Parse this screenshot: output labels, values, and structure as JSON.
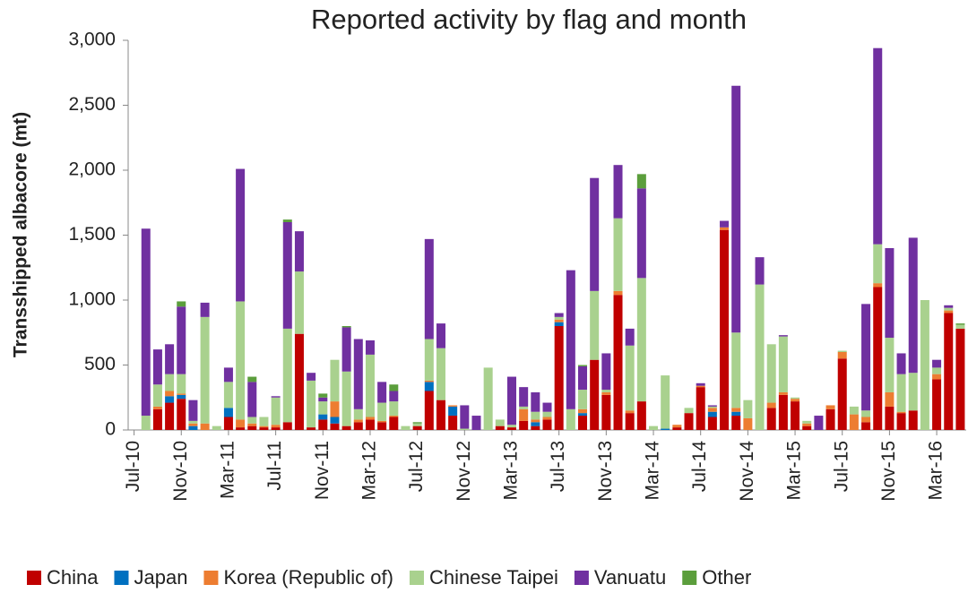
{
  "chart_data": {
    "type": "stacked_bar",
    "title": "Reported activity by flag and month",
    "y_label": "Transshipped albacore (mt)",
    "categories": [
      "Jul-10",
      null,
      null,
      null,
      "Nov-10",
      null,
      null,
      null,
      "Mar-11",
      null,
      null,
      null,
      "Jul-11",
      null,
      null,
      null,
      "Nov-11",
      null,
      null,
      null,
      "Mar-12",
      null,
      null,
      null,
      "Jul-12",
      null,
      null,
      null,
      "Nov-12",
      null,
      null,
      null,
      "Mar-13",
      null,
      null,
      null,
      "Jul-13",
      null,
      null,
      null,
      "Nov-13",
      null,
      null,
      null,
      "Mar-14",
      null,
      null,
      null,
      "Jul-14",
      null,
      null,
      null,
      "Nov-14",
      null,
      null,
      null,
      "Mar-15",
      null,
      null,
      null,
      "Jul-15",
      null,
      null,
      null,
      "Nov-15",
      null,
      null,
      null,
      "Mar-16",
      null,
      null
    ],
    "series": [
      {
        "name": "China",
        "color": "#c00000",
        "values": [
          0,
          0,
          160,
          210,
          240,
          0,
          0,
          0,
          100,
          20,
          30,
          20,
          20,
          60,
          740,
          20,
          80,
          50,
          30,
          60,
          80,
          60,
          100,
          0,
          30,
          300,
          230,
          110,
          0,
          0,
          0,
          30,
          20,
          70,
          30,
          80,
          800,
          0,
          110,
          540,
          270,
          1040,
          130,
          220,
          0,
          0,
          20,
          130,
          330,
          100,
          1540,
          110,
          0,
          0,
          170,
          270,
          220,
          30,
          0,
          160,
          550,
          0,
          60,
          1100,
          180,
          130,
          150,
          0,
          390,
          900,
          780
        ]
      },
      {
        "name": "Japan",
        "color": "#0070c0",
        "values": [
          0,
          0,
          0,
          50,
          30,
          30,
          0,
          0,
          70,
          0,
          0,
          0,
          0,
          0,
          0,
          0,
          40,
          50,
          0,
          0,
          0,
          0,
          0,
          0,
          0,
          70,
          0,
          70,
          0,
          0,
          0,
          0,
          0,
          0,
          30,
          0,
          30,
          0,
          20,
          0,
          0,
          0,
          0,
          0,
          0,
          10,
          0,
          0,
          0,
          40,
          0,
          30,
          0,
          0,
          0,
          0,
          0,
          0,
          0,
          0,
          0,
          0,
          0,
          0,
          0,
          0,
          0,
          0,
          0,
          0,
          0
        ]
      },
      {
        "name": "Korea (Republic of)",
        "color": "#ed7d31",
        "values": [
          0,
          0,
          20,
          40,
          10,
          20,
          50,
          0,
          0,
          60,
          20,
          10,
          20,
          0,
          0,
          0,
          0,
          120,
          0,
          20,
          20,
          10,
          10,
          0,
          0,
          10,
          0,
          10,
          0,
          0,
          0,
          0,
          0,
          90,
          20,
          20,
          20,
          0,
          30,
          0,
          20,
          30,
          20,
          0,
          0,
          0,
          20,
          0,
          10,
          30,
          20,
          30,
          90,
          0,
          40,
          20,
          20,
          20,
          0,
          30,
          50,
          120,
          40,
          30,
          110,
          10,
          0,
          0,
          40,
          20,
          0
        ]
      },
      {
        "name": "Chinese Taipei",
        "color": "#a9d18e",
        "values": [
          0,
          110,
          170,
          130,
          150,
          20,
          820,
          30,
          200,
          910,
          50,
          70,
          210,
          720,
          480,
          360,
          100,
          320,
          420,
          80,
          480,
          140,
          110,
          30,
          20,
          320,
          400,
          0,
          10,
          0,
          480,
          50,
          20,
          20,
          60,
          40,
          20,
          160,
          150,
          530,
          20,
          560,
          500,
          950,
          30,
          410,
          0,
          40,
          0,
          10,
          0,
          580,
          140,
          1120,
          450,
          430,
          10,
          20,
          0,
          0,
          10,
          60,
          50,
          300,
          420,
          290,
          290,
          1000,
          50,
          20,
          30
        ]
      },
      {
        "name": "Vanuatu",
        "color": "#7030a0",
        "values": [
          0,
          1440,
          270,
          230,
          520,
          160,
          110,
          0,
          110,
          1020,
          270,
          0,
          10,
          820,
          310,
          60,
          30,
          0,
          340,
          540,
          110,
          160,
          80,
          0,
          0,
          770,
          190,
          0,
          180,
          110,
          0,
          0,
          370,
          150,
          150,
          70,
          30,
          1070,
          180,
          870,
          280,
          410,
          130,
          690,
          0,
          0,
          0,
          0,
          20,
          10,
          50,
          1900,
          0,
          210,
          0,
          10,
          0,
          0,
          110,
          0,
          0,
          0,
          820,
          1510,
          690,
          160,
          1040,
          0,
          60,
          20,
          0
        ]
      },
      {
        "name": "Other",
        "color": "#5b9e3c",
        "values": [
          0,
          0,
          0,
          0,
          40,
          0,
          0,
          0,
          0,
          0,
          40,
          0,
          0,
          20,
          0,
          0,
          30,
          0,
          10,
          0,
          0,
          0,
          50,
          0,
          10,
          0,
          0,
          0,
          0,
          0,
          0,
          0,
          0,
          0,
          0,
          0,
          0,
          0,
          10,
          0,
          0,
          0,
          0,
          110,
          0,
          0,
          0,
          0,
          0,
          0,
          0,
          0,
          0,
          0,
          0,
          0,
          0,
          0,
          0,
          0,
          0,
          0,
          0,
          0,
          0,
          0,
          0,
          0,
          0,
          0,
          10
        ]
      }
    ],
    "ylim": [
      0,
      3000
    ],
    "yticks": [
      0,
      500,
      {
        "value": 1000,
        "label": "1,000"
      },
      {
        "value": 1500,
        "label": "1,500"
      },
      {
        "value": 2000,
        "label": "2,000"
      },
      {
        "value": 2500,
        "label": "2,500"
      },
      {
        "value": 3000,
        "label": "3,000"
      }
    ],
    "legend": "bottom"
  }
}
